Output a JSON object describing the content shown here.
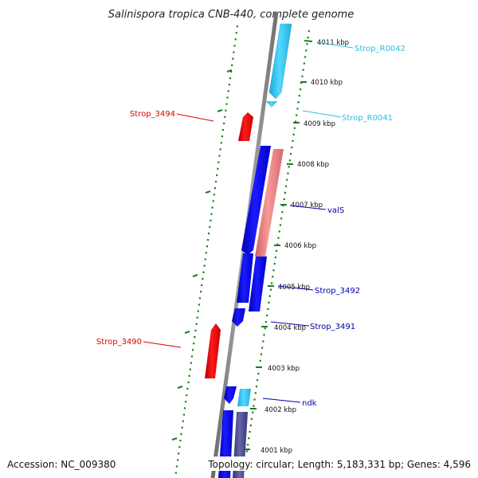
{
  "title": "Salinispora tropica CNB-440, complete genome",
  "footer": {
    "accession": "Accession: NC_009380",
    "summary": "Topology: circular; Length: 5,183,331 bp; Genes: 4,596"
  },
  "colors": {
    "backbone": "#8a8a8a",
    "tick": "#1e7d1e",
    "forward_gene": "#0000e6",
    "reverse_gene": "#e00000",
    "rna": "#33ccee",
    "pseudo": "#ee8080",
    "dark_gene": "#444488"
  },
  "kbp_ticks": [
    {
      "label": "4011 kbp"
    },
    {
      "label": "4010 kbp"
    },
    {
      "label": "4009 kbp"
    },
    {
      "label": "4008 kbp"
    },
    {
      "label": "4007 kbp"
    },
    {
      "label": "4006 kbp"
    },
    {
      "label": "4005 kbp"
    },
    {
      "label": "4004 kbp"
    },
    {
      "label": "4003 kbp"
    },
    {
      "label": "4002 kbp"
    },
    {
      "label": "4001 kbp"
    }
  ],
  "gene_labels": [
    {
      "id": "strop-r0042",
      "text": "Strop_R0042",
      "color": "#33bbdd"
    },
    {
      "id": "strop-r0041",
      "text": "Strop_R0041",
      "color": "#33bbdd"
    },
    {
      "id": "strop-3494",
      "text": "Strop_3494",
      "color": "#dd0000"
    },
    {
      "id": "vals",
      "text": "valS",
      "color": "#0000aa"
    },
    {
      "id": "strop-3492",
      "text": "Strop_3492",
      "color": "#0000aa"
    },
    {
      "id": "strop-3491",
      "text": "Strop_3491",
      "color": "#0000aa"
    },
    {
      "id": "strop-3490",
      "text": "Strop_3490",
      "color": "#dd0000"
    },
    {
      "id": "ndk",
      "text": "ndk",
      "color": "#0000aa"
    }
  ]
}
